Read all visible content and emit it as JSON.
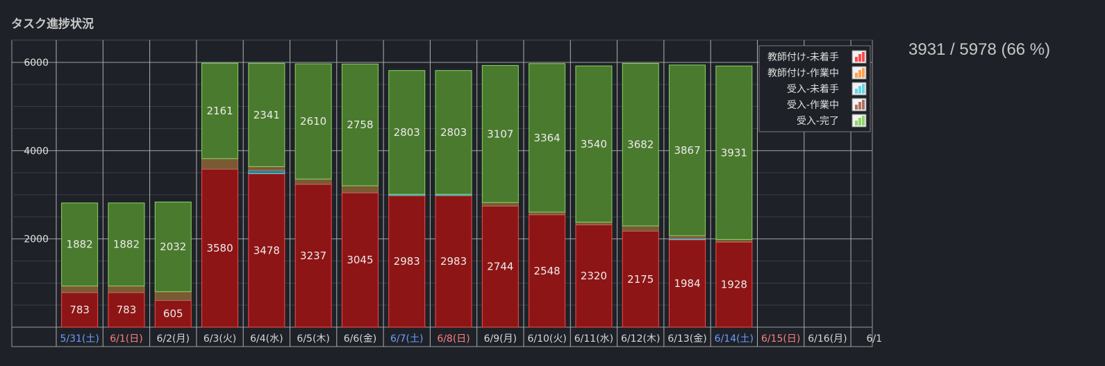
{
  "title": "タスク進捗状況",
  "summary": "3931 / 5978 (66 %)",
  "chart_data": {
    "type": "bar",
    "stacked": true,
    "grid": true,
    "legend_position": "top-right",
    "ylim": [
      0,
      6500
    ],
    "yticks": [
      2000,
      4000,
      6000
    ],
    "categories": [
      {
        "label": "5/31(土)",
        "color": "#6f9cff"
      },
      {
        "label": "6/1(日)",
        "color": "#ff7f7f"
      },
      {
        "label": "6/2(月)",
        "color": "#d8d8d8"
      },
      {
        "label": "6/3(火)",
        "color": "#d8d8d8"
      },
      {
        "label": "6/4(水)",
        "color": "#d8d8d8"
      },
      {
        "label": "6/5(木)",
        "color": "#d8d8d8"
      },
      {
        "label": "6/6(金)",
        "color": "#d8d8d8"
      },
      {
        "label": "6/7(土)",
        "color": "#6f9cff"
      },
      {
        "label": "6/8(日)",
        "color": "#ff7f7f"
      },
      {
        "label": "6/9(月)",
        "color": "#d8d8d8"
      },
      {
        "label": "6/10(火)",
        "color": "#d8d8d8"
      },
      {
        "label": "6/11(水)",
        "color": "#d8d8d8"
      },
      {
        "label": "6/12(木)",
        "color": "#d8d8d8"
      },
      {
        "label": "6/13(金)",
        "color": "#d8d8d8"
      },
      {
        "label": "6/14(土)",
        "color": "#6f9cff"
      },
      {
        "label": "6/15(日)",
        "color": "#ff7f7f"
      },
      {
        "label": "6/16(月)",
        "color": "#d8d8d8"
      },
      {
        "label": "6/1",
        "color": "#d8d8d8"
      }
    ],
    "series": [
      {
        "name": "教師付け-未着手",
        "fill": "#8e1515",
        "stroke": "#ff4a4a",
        "values": [
          783,
          783,
          605,
          3580,
          3478,
          3237,
          3045,
          2983,
          2983,
          2744,
          2548,
          2320,
          2175,
          1984,
          1928,
          null,
          null,
          null
        ],
        "show_labels": true
      },
      {
        "name": "教師付け-作業中",
        "fill": "#8a4a22",
        "stroke": "#ffa050",
        "values": [
          0,
          0,
          0,
          0,
          0,
          0,
          0,
          0,
          0,
          0,
          0,
          0,
          0,
          0,
          0,
          null,
          null,
          null
        ],
        "show_labels": false
      },
      {
        "name": "受入-未着手",
        "fill": "#3c7f8a",
        "stroke": "#66d6e8",
        "values": [
          0,
          0,
          0,
          0,
          80,
          0,
          0,
          30,
          30,
          0,
          0,
          0,
          0,
          30,
          0,
          null,
          null,
          null
        ],
        "show_labels": false
      },
      {
        "name": "受入-作業中",
        "fill": "#7a5a32",
        "stroke": "#b07060",
        "values": [
          150,
          150,
          200,
          240,
          80,
          120,
          160,
          0,
          0,
          80,
          60,
          60,
          120,
          60,
          60,
          null,
          null,
          null
        ],
        "show_labels": false
      },
      {
        "name": "受入-完了",
        "fill": "#4a7a2e",
        "stroke": "#8ed468",
        "values": [
          1882,
          1882,
          2032,
          2161,
          2341,
          2610,
          2758,
          2803,
          2803,
          3107,
          3364,
          3540,
          3682,
          3867,
          3931,
          null,
          null,
          null
        ],
        "show_labels": true
      }
    ]
  }
}
